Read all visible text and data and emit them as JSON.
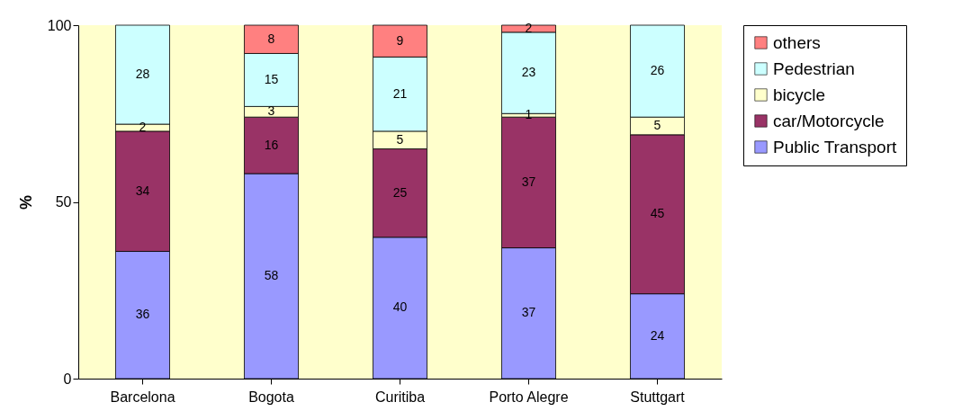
{
  "chart_data": {
    "type": "bar",
    "stacked": true,
    "ylabel": "%",
    "categories": [
      "Barcelona",
      "Bogota",
      "Curitiba",
      "Porto Alegre",
      "Stuttgart"
    ],
    "series": [
      {
        "name": "Public Transport",
        "color": "#9999ff",
        "values": [
          36,
          58,
          40,
          37,
          24
        ]
      },
      {
        "name": "car/Motorcycle",
        "color": "#993366",
        "values": [
          34,
          16,
          25,
          37,
          45
        ]
      },
      {
        "name": "bicycle",
        "color": "#ffffcc",
        "values": [
          2,
          3,
          5,
          1,
          5
        ]
      },
      {
        "name": "Pedestrian",
        "color": "#ccffff",
        "values": [
          28,
          15,
          21,
          23,
          26
        ]
      },
      {
        "name": "others",
        "color": "#ff8080",
        "values": [
          null,
          8,
          9,
          2,
          null
        ]
      }
    ],
    "ylim": [
      0,
      100
    ],
    "yticks": [
      0,
      50,
      100
    ],
    "grid": false,
    "legend": "right",
    "data_labels": true
  }
}
